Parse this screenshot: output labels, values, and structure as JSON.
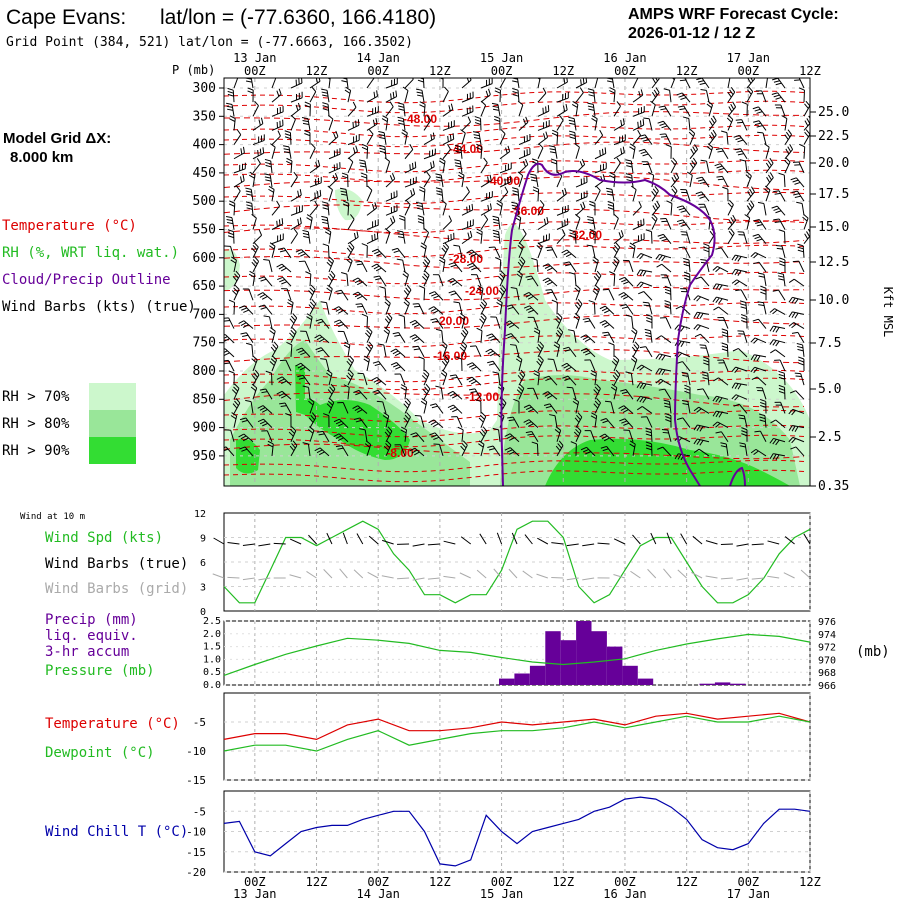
{
  "header": {
    "station": "Cape Evans:",
    "latlon": "lat/lon = (-77.6360, 166.4180)",
    "grid_point": "Grid Point (384, 521) lat/lon = (-77.6663, 166.3502)",
    "cycle_title": "AMPS WRF Forecast Cycle:",
    "cycle_value": "2026-01-12 / 12  Z"
  },
  "legend": {
    "model_grid_line1": "Model Grid ΔX:",
    "model_grid_line2": "8.000 km",
    "temperature": "Temperature (°C)",
    "rh": "RH (%, WRT liq. wat.)",
    "cloud": "Cloud/Precip Outline",
    "wind_barbs": "Wind Barbs (kts) (true)",
    "rh70": "RH > 70%",
    "rh80": "RH > 80%",
    "rh90": "RH > 90%",
    "rh_colors": [
      "#ccf7cc",
      "#99e699",
      "#33dd33"
    ]
  },
  "time_axis": {
    "day_labels": [
      "13 Jan",
      "14 Jan",
      "15 Jan",
      "16 Jan",
      "17 Jan"
    ],
    "hour_labels": [
      "00Z",
      "12Z",
      "00Z",
      "12Z",
      "00Z",
      "12Z",
      "00Z",
      "12Z",
      "00Z",
      "12Z"
    ]
  },
  "chart_data": [
    {
      "type": "time-height cross section",
      "ylabel": "P (mb)",
      "pressure_levels": [
        300,
        350,
        400,
        450,
        500,
        550,
        600,
        650,
        700,
        750,
        800,
        850,
        900,
        950
      ],
      "height_kft_ticks": [
        "25.0",
        "22.5",
        "20.0",
        "17.5",
        "15.0",
        "12.5",
        "10.0",
        "7.5",
        "5.0",
        "2.5",
        "0.35"
      ],
      "height_axis_label": "Kft MSL",
      "temperature_contour_labels": [
        "-48.00",
        "-44.00",
        "-40.00",
        "-36.00",
        "-32.00",
        "-28.00",
        "-24.00",
        "-20.00",
        "-16.00",
        "-12.00",
        "-8.00"
      ],
      "x_hours": [
        6,
        120
      ]
    },
    {
      "type": "line",
      "title": "Wind at 10 m",
      "series_labels": [
        "Wind Spd (kts)",
        "Wind Barbs (true)",
        "Wind Barbs (grid)"
      ],
      "ylim": [
        0,
        12
      ],
      "yticks": [
        "12",
        "9",
        "6",
        "3",
        "0"
      ],
      "hours": [
        0,
        3,
        6,
        9,
        12,
        15,
        18,
        21,
        24,
        27,
        30,
        33,
        36,
        39,
        42,
        45,
        48,
        51,
        54,
        57,
        60,
        63,
        66,
        69,
        72,
        75,
        78,
        81,
        84,
        87,
        90,
        93,
        96,
        99,
        102,
        105,
        108,
        111,
        114
      ],
      "wind_speed_kts": [
        3,
        1,
        1,
        5,
        9,
        9,
        8,
        9,
        10,
        11,
        10,
        7,
        5,
        2,
        2,
        1,
        2,
        2,
        5,
        10,
        11,
        11,
        9,
        3,
        1,
        2,
        5,
        8,
        9,
        9,
        6,
        3,
        1,
        1,
        2,
        4,
        7,
        9,
        10
      ],
      "series_colors": [
        "#22bb22",
        "#000000",
        "#aaaaaa"
      ]
    },
    {
      "type": "bar+line",
      "series_labels": [
        "Precip (mm)",
        "liq. equiv.",
        "3-hr accum",
        "Pressure (mb)"
      ],
      "precip_ylim": [
        0,
        2.5
      ],
      "precip_yticks": [
        "2.5",
        "2.0",
        "1.5",
        "1.0",
        "0.5",
        "0.0"
      ],
      "pressure_ylim": [
        966,
        976
      ],
      "pressure_yticks": [
        "976",
        "974",
        "972",
        "970",
        "968",
        "966"
      ],
      "pressure_unit": "(mb)",
      "precip_bars": [
        {
          "hour": 55,
          "value": 0.25
        },
        {
          "hour": 58,
          "value": 0.45
        },
        {
          "hour": 61,
          "value": 0.75
        },
        {
          "hour": 64,
          "value": 2.1
        },
        {
          "hour": 67,
          "value": 1.75
        },
        {
          "hour": 70,
          "value": 2.5
        },
        {
          "hour": 73,
          "value": 2.1
        },
        {
          "hour": 76,
          "value": 1.5
        },
        {
          "hour": 79,
          "value": 0.75
        },
        {
          "hour": 82,
          "value": 0.25
        },
        {
          "hour": 94,
          "value": 0.05
        },
        {
          "hour": 97,
          "value": 0.1
        },
        {
          "hour": 100,
          "value": 0.05
        }
      ],
      "hours": [
        0,
        6,
        12,
        18,
        24,
        30,
        36,
        42,
        48,
        54,
        60,
        66,
        72,
        78,
        84,
        90,
        96,
        102,
        108,
        114
      ],
      "pressure_mb": [
        967.5,
        969.2,
        970.8,
        972.1,
        973.3,
        973.0,
        972.5,
        971.4,
        971.1,
        970.3,
        969.6,
        969.2,
        969.6,
        970.1,
        971.4,
        972.4,
        973.2,
        973.9,
        973.6,
        972.7
      ],
      "series_colors": [
        "#660099",
        "#22bb22"
      ]
    },
    {
      "type": "line",
      "series_labels": [
        "Temperature (°C)",
        "Dewpoint (°C)"
      ],
      "ylim": [
        -15,
        0
      ],
      "yticks": [
        "-5",
        "-10",
        "-15"
      ],
      "hours": [
        0,
        6,
        12,
        18,
        24,
        30,
        36,
        42,
        48,
        54,
        60,
        66,
        72,
        78,
        84,
        90,
        96,
        102,
        108,
        114
      ],
      "temperature_c": [
        -8,
        -7,
        -7,
        -8,
        -5.5,
        -4.5,
        -6.5,
        -6.5,
        -6,
        -5,
        -5.5,
        -5,
        -4.5,
        -5.5,
        -4,
        -3.5,
        -4.5,
        -4,
        -3.5,
        -5
      ],
      "dewpoint_c": [
        -10,
        -9,
        -9,
        -10,
        -8,
        -6.5,
        -9,
        -8,
        -7,
        -6.5,
        -6.5,
        -6,
        -5,
        -6,
        -5,
        -4,
        -5,
        -5,
        -4,
        -5
      ],
      "series_colors": [
        "#dd0000",
        "#22bb22"
      ]
    },
    {
      "type": "line",
      "series_labels": [
        "Wind Chill T (°C)"
      ],
      "ylim": [
        -20,
        0
      ],
      "yticks": [
        "-5",
        "-10",
        "-15",
        "-20"
      ],
      "hours": [
        0,
        3,
        6,
        9,
        12,
        15,
        18,
        21,
        24,
        27,
        30,
        33,
        36,
        39,
        42,
        45,
        48,
        51,
        54,
        57,
        60,
        63,
        66,
        69,
        72,
        75,
        78,
        81,
        84,
        87,
        90,
        93,
        96,
        99,
        102,
        105,
        108,
        111,
        114
      ],
      "wind_chill_c": [
        -8,
        -7.5,
        -15,
        -16,
        -13,
        -10,
        -9,
        -8.5,
        -8.5,
        -7,
        -6,
        -5,
        -5,
        -10,
        -18,
        -18.5,
        -17,
        -6,
        -10,
        -13,
        -10,
        -9,
        -8,
        -7,
        -5,
        -4,
        -2,
        -1.5,
        -2,
        -4,
        -7,
        -12,
        -14,
        -14.5,
        -13,
        -8,
        -4.5,
        -4.5,
        -5
      ],
      "series_colors": [
        "#0000aa"
      ]
    }
  ]
}
